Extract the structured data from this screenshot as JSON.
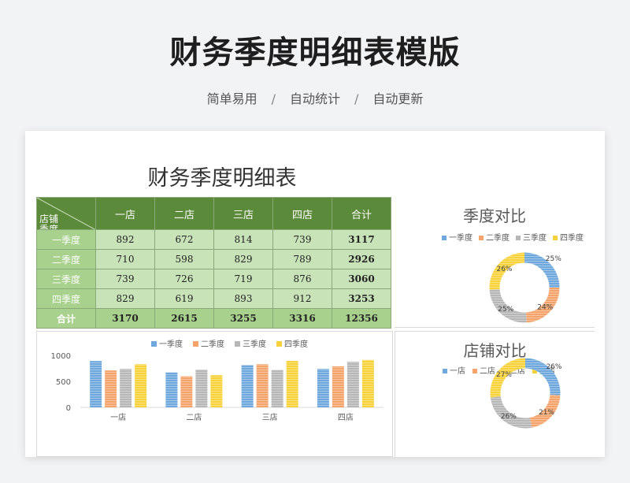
{
  "page": {
    "title": "财务季度明细表模版",
    "tags": [
      "简单易用",
      "自动统计",
      "自动更新"
    ],
    "separator": "/"
  },
  "sheet": {
    "title": "财务季度明细表",
    "corner_store": "店铺",
    "corner_season": "季度",
    "columns": [
      "一店",
      "二店",
      "三店",
      "四店",
      "合计"
    ],
    "rows": [
      {
        "label": "一季度",
        "values": [
          "892",
          "672",
          "814",
          "739",
          "3117"
        ]
      },
      {
        "label": "二季度",
        "values": [
          "710",
          "598",
          "829",
          "789",
          "2926"
        ]
      },
      {
        "label": "三季度",
        "values": [
          "739",
          "726",
          "719",
          "876",
          "3060"
        ]
      },
      {
        "label": "四季度",
        "values": [
          "829",
          "619",
          "893",
          "912",
          "3253"
        ]
      }
    ],
    "total": {
      "label": "合计",
      "values": [
        "3170",
        "2615",
        "3255",
        "3316",
        "12356"
      ]
    }
  },
  "colors": {
    "q1": "#6fa8dc",
    "q2": "#f4a46a",
    "q3": "#b7b7b7",
    "q4": "#f7d23a",
    "header": "#5b8a3a"
  },
  "chart_data": [
    {
      "type": "bar",
      "categories": [
        "一店",
        "二店",
        "三店",
        "四店"
      ],
      "series": [
        {
          "name": "一季度",
          "values": [
            892,
            672,
            814,
            739
          ]
        },
        {
          "name": "二季度",
          "values": [
            710,
            598,
            829,
            789
          ]
        },
        {
          "name": "三季度",
          "values": [
            739,
            726,
            719,
            876
          ]
        },
        {
          "name": "四季度",
          "values": [
            829,
            619,
            893,
            912
          ]
        }
      ],
      "yticks": [
        "0",
        "500",
        "1000"
      ],
      "ylim": [
        0,
        1000
      ],
      "legend": "top"
    },
    {
      "type": "pie",
      "title": "季度对比",
      "labels": [
        "一季度",
        "二季度",
        "三季度",
        "四季度"
      ],
      "values": [
        25,
        24,
        25,
        26
      ],
      "value_labels": [
        "25%",
        "24%",
        "25%",
        "26%"
      ],
      "legend": "top"
    },
    {
      "type": "pie",
      "title": "店铺对比",
      "labels": [
        "一店",
        "二店",
        "三店",
        "四店"
      ],
      "values": [
        26,
        21,
        26,
        27
      ],
      "value_labels": [
        "26%",
        "21%",
        "26%",
        "27%"
      ],
      "legend": "top"
    }
  ]
}
